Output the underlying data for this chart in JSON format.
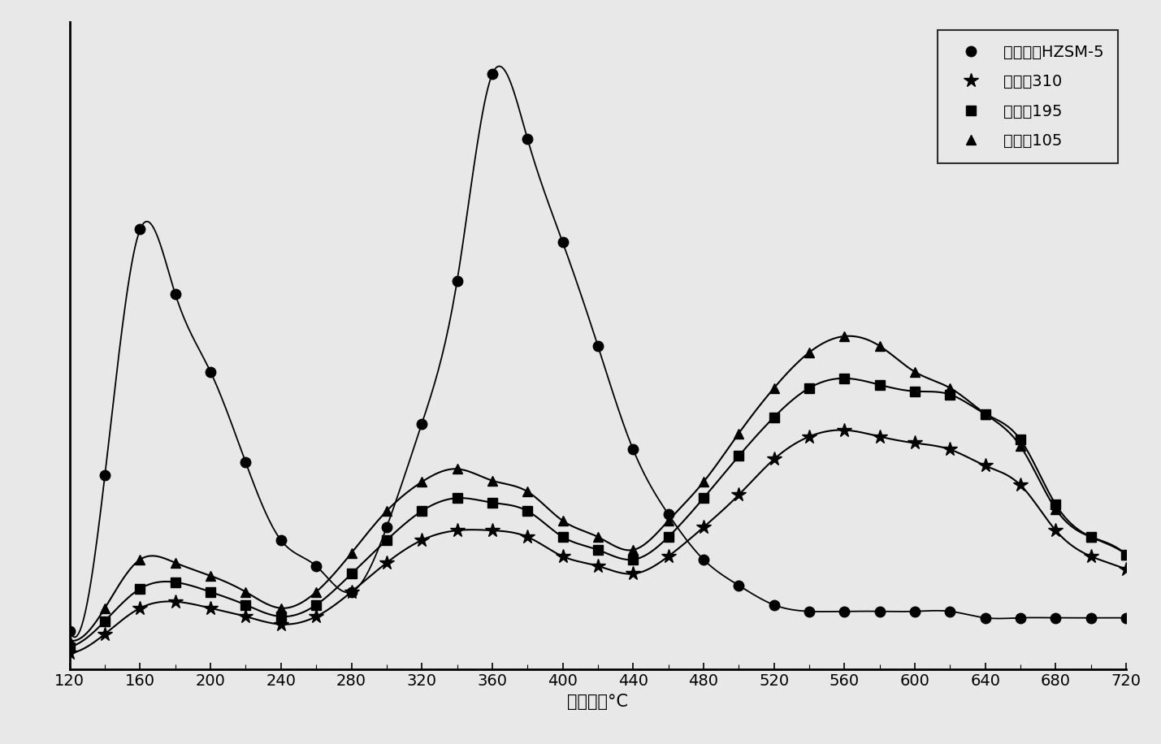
{
  "xlabel": "脱附温度°C",
  "xticks": [
    120,
    160,
    200,
    240,
    280,
    320,
    360,
    400,
    440,
    480,
    520,
    560,
    600,
    640,
    680,
    720
  ],
  "xlim": [
    120,
    720
  ],
  "ylim": [
    0,
    1.0
  ],
  "background_color": "#f0f0f0",
  "series": [
    {
      "label": "低硅铝比HZSM-5",
      "color": "#000000",
      "linestyle": "-",
      "marker": "o",
      "markersize": 9,
      "linewidth": 1.3,
      "x": [
        120,
        140,
        160,
        180,
        200,
        220,
        240,
        260,
        280,
        300,
        320,
        340,
        360,
        380,
        400,
        420,
        440,
        460,
        480,
        500,
        520,
        540,
        560,
        580,
        600,
        620,
        640,
        660,
        680,
        700,
        720
      ],
      "y": [
        0.06,
        0.3,
        0.68,
        0.58,
        0.46,
        0.32,
        0.2,
        0.16,
        0.12,
        0.22,
        0.38,
        0.6,
        0.92,
        0.82,
        0.66,
        0.5,
        0.34,
        0.24,
        0.17,
        0.13,
        0.1,
        0.09,
        0.09,
        0.09,
        0.09,
        0.09,
        0.08,
        0.08,
        0.08,
        0.08,
        0.08
      ]
    },
    {
      "label": "硅铝比310",
      "color": "#000000",
      "linestyle": "-",
      "marker": "*",
      "markersize": 13,
      "linewidth": 1.5,
      "x": [
        120,
        140,
        160,
        180,
        200,
        220,
        240,
        260,
        280,
        300,
        320,
        340,
        360,
        380,
        400,
        420,
        440,
        460,
        480,
        500,
        520,
        540,
        560,
        580,
        600,
        620,
        640,
        660,
        680,
        700,
        720
      ],
      "y": [
        0.025,
        0.055,
        0.095,
        0.105,
        0.095,
        0.082,
        0.07,
        0.082,
        0.12,
        0.165,
        0.2,
        0.215,
        0.215,
        0.205,
        0.175,
        0.16,
        0.148,
        0.175,
        0.22,
        0.27,
        0.325,
        0.36,
        0.37,
        0.36,
        0.35,
        0.34,
        0.315,
        0.285,
        0.215,
        0.175,
        0.155
      ]
    },
    {
      "label": "硅铝比195",
      "color": "#000000",
      "linestyle": "-",
      "marker": "s",
      "markersize": 8,
      "linewidth": 1.5,
      "x": [
        120,
        140,
        160,
        180,
        200,
        220,
        240,
        260,
        280,
        300,
        320,
        340,
        360,
        380,
        400,
        420,
        440,
        460,
        480,
        500,
        520,
        540,
        560,
        580,
        600,
        620,
        640,
        660,
        680,
        700,
        720
      ],
      "y": [
        0.035,
        0.075,
        0.125,
        0.135,
        0.12,
        0.1,
        0.082,
        0.1,
        0.148,
        0.2,
        0.245,
        0.265,
        0.258,
        0.245,
        0.205,
        0.185,
        0.17,
        0.205,
        0.265,
        0.33,
        0.39,
        0.435,
        0.45,
        0.44,
        0.43,
        0.425,
        0.395,
        0.355,
        0.255,
        0.205,
        0.178
      ]
    },
    {
      "label": "硅铝比105",
      "color": "#000000",
      "linestyle": "-",
      "marker": "^",
      "markersize": 9,
      "linewidth": 1.5,
      "x": [
        120,
        140,
        160,
        180,
        200,
        220,
        240,
        260,
        280,
        300,
        320,
        340,
        360,
        380,
        400,
        420,
        440,
        460,
        480,
        500,
        520,
        540,
        560,
        580,
        600,
        620,
        640,
        660,
        680,
        700,
        720
      ],
      "y": [
        0.045,
        0.095,
        0.17,
        0.165,
        0.145,
        0.12,
        0.095,
        0.12,
        0.18,
        0.245,
        0.29,
        0.31,
        0.292,
        0.275,
        0.23,
        0.205,
        0.185,
        0.23,
        0.29,
        0.365,
        0.435,
        0.49,
        0.515,
        0.5,
        0.46,
        0.435,
        0.395,
        0.345,
        0.248,
        0.205,
        0.178
      ]
    }
  ],
  "legend_loc": "upper right",
  "font_size": 15,
  "tick_fontsize": 14,
  "legend_fontsize": 14
}
